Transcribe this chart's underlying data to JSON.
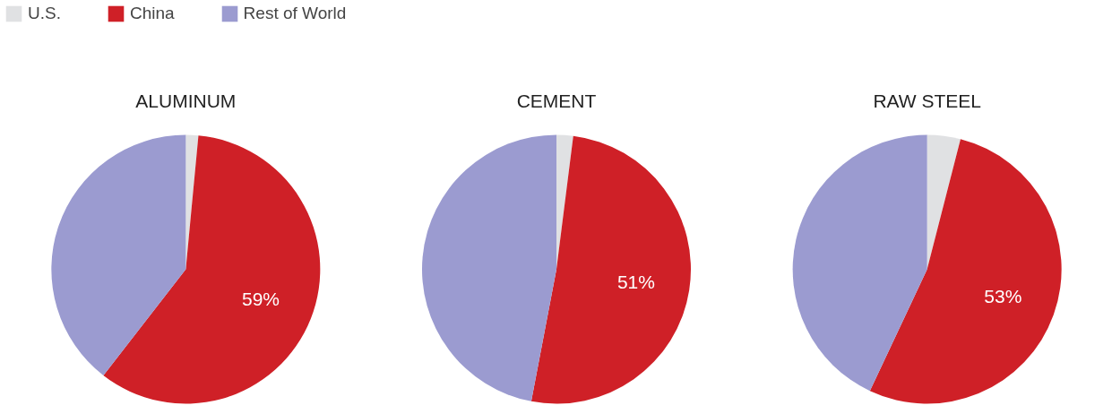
{
  "chart_data": [
    {
      "type": "pie",
      "title": "ALUMINUM",
      "categories": [
        "U.S.",
        "China",
        "Rest of World"
      ],
      "values": [
        1.5,
        59,
        39.5
      ],
      "colors": [
        "#e0e1e3",
        "#cf2027",
        "#9b9bd0"
      ],
      "value_labels": [
        null,
        "59%",
        null
      ],
      "legend": "top left"
    },
    {
      "type": "pie",
      "title": "CEMENT",
      "categories": [
        null,
        null,
        null
      ],
      "values": [
        2,
        51,
        47
      ],
      "colors": [
        "#e0e1e3",
        "#cf2027",
        "#9b9bd0"
      ],
      "value_labels": [
        null,
        "51%",
        null
      ]
    },
    {
      "type": "pie",
      "title": "RAW STEEL",
      "categories": [
        null,
        null,
        null
      ],
      "values": [
        4,
        53,
        43
      ],
      "colors": [
        "#e0e1e3",
        "#cf2027",
        "#9b9bd0"
      ],
      "value_labels": [
        null,
        "53%",
        null
      ]
    }
  ]
}
